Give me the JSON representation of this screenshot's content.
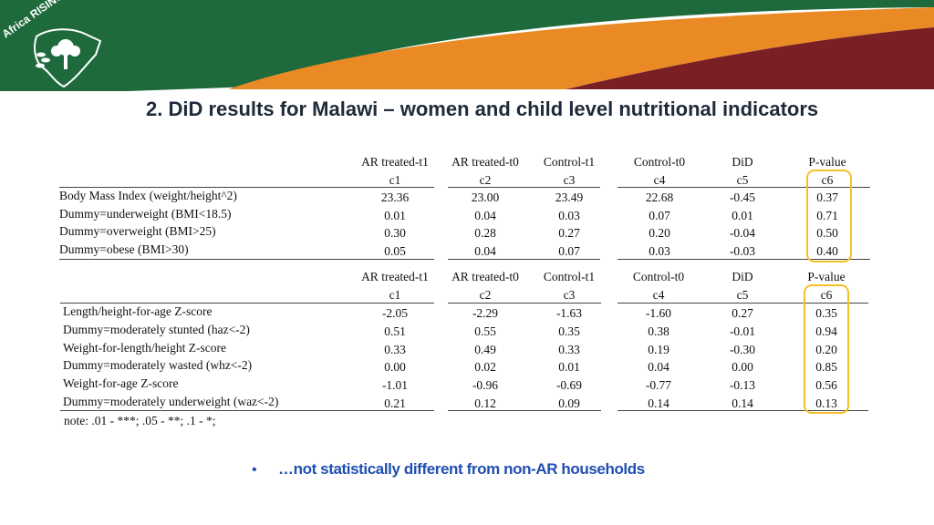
{
  "brand": {
    "name": "Africa RISING",
    "colors": {
      "green": "#1e6a3c",
      "orange": "#e98a25",
      "maroon": "#7a1f24",
      "highlight": "#f6c026",
      "callout": "#1f4fb0"
    }
  },
  "slide": {
    "title": "2. DiD results for Malawi – women and child level nutritional indicators"
  },
  "columns": [
    {
      "name": "AR treated-t1",
      "code": "c1"
    },
    {
      "name": "AR treated-t0",
      "code": "c2"
    },
    {
      "name": "Control-t1",
      "code": "c3"
    },
    {
      "name": "Control-t0",
      "code": "c4"
    },
    {
      "name": "DiD",
      "code": "c5"
    },
    {
      "name": "P-value",
      "code": "c6"
    }
  ],
  "table1": {
    "rows": [
      {
        "label": "Body Mass Index (weight/height^2)",
        "values": [
          "23.36",
          "23.00",
          "23.49",
          "22.68",
          "-0.45",
          "0.37"
        ]
      },
      {
        "label": "Dummy=underweight (BMI<18.5)",
        "values": [
          "0.01",
          "0.04",
          "0.03",
          "0.07",
          "0.01",
          "0.71"
        ]
      },
      {
        "label": "Dummy=overweight (BMI>25)",
        "values": [
          "0.30",
          "0.28",
          "0.27",
          "0.20",
          "-0.04",
          "0.50"
        ]
      },
      {
        "label": "Dummy=obese (BMI>30)",
        "values": [
          "0.05",
          "0.04",
          "0.07",
          "0.03",
          "-0.03",
          "0.40"
        ]
      }
    ]
  },
  "table2": {
    "rows": [
      {
        "label": "Length/height-for-age Z-score",
        "values": [
          "-2.05",
          "-2.29",
          "-1.63",
          "-1.60",
          "0.27",
          "0.35"
        ]
      },
      {
        "label": "Dummy=moderately stunted (haz<-2)",
        "values": [
          "0.51",
          "0.55",
          "0.35",
          "0.38",
          "-0.01",
          "0.94"
        ]
      },
      {
        "label": "Weight-for-length/height Z-score",
        "values": [
          "0.33",
          "0.49",
          "0.33",
          "0.19",
          "-0.30",
          "0.20"
        ]
      },
      {
        "label": "Dummy=moderately wasted (whz<-2)",
        "values": [
          "0.00",
          "0.02",
          "0.01",
          "0.04",
          "0.00",
          "0.85"
        ]
      },
      {
        "label": "Weight-for-age Z-score",
        "values": [
          "-1.01",
          "-0.96",
          "-0.69",
          "-0.77",
          "-0.13",
          "0.56"
        ]
      },
      {
        "label": "Dummy=moderately underweight (waz<-2)",
        "values": [
          "0.21",
          "0.12",
          "0.09",
          "0.14",
          "0.14",
          "0.13"
        ]
      }
    ]
  },
  "note": "note:  .01 - ***; .05 - **; .1 - *;",
  "bullet_symbol": "•",
  "callout": "…not statistically different from non-AR households"
}
